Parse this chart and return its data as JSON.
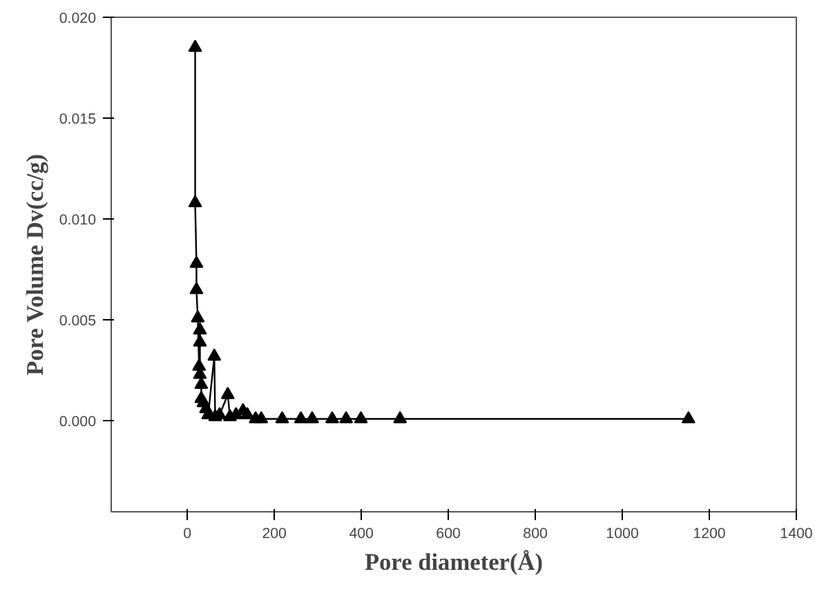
{
  "chart_data": {
    "type": "line",
    "xlabel": "Pore diameter(Å)",
    "ylabel": "Pore Volume Dv(cc/g)",
    "x": [
      18,
      18,
      21,
      21,
      24,
      27,
      29,
      29,
      29,
      32,
      32,
      37,
      43,
      48,
      62,
      64,
      74,
      93,
      98,
      112,
      128,
      138,
      157,
      170,
      218,
      261,
      287,
      333,
      365,
      399,
      489,
      1152
    ],
    "series": [
      {
        "color": "#000000",
        "values": [
          0.0185,
          0.0108,
          0.0078,
          0.0065,
          0.0051,
          0.0027,
          0.0045,
          0.0039,
          0.0023,
          0.0018,
          0.0011,
          0.0009,
          0.0006,
          0.0003,
          0.0032,
          0.0002,
          0.0003,
          0.0013,
          0.0002,
          0.0003,
          0.0005,
          0.0003,
          0.0001,
          0.0001,
          0.0001,
          0.0001,
          0.0001,
          0.0001,
          0.0001,
          0.0001,
          0.0001,
          0.0001
        ]
      }
    ],
    "xlim": [
      -175,
      1400
    ],
    "ylim": [
      -0.0045,
      0.02
    ],
    "xticks": [
      0,
      200,
      400,
      600,
      800,
      1000,
      1200,
      1400
    ],
    "yticks": [
      {
        "value": 0,
        "label": "0.000"
      },
      {
        "value": 0.005,
        "label": "0.005"
      },
      {
        "value": 0.01,
        "label": "0.010"
      },
      {
        "value": 0.015,
        "label": "0.015"
      },
      {
        "value": 0.02,
        "label": "0.020"
      }
    ],
    "grid": false,
    "marker": "triangle",
    "line_style": "solid"
  }
}
